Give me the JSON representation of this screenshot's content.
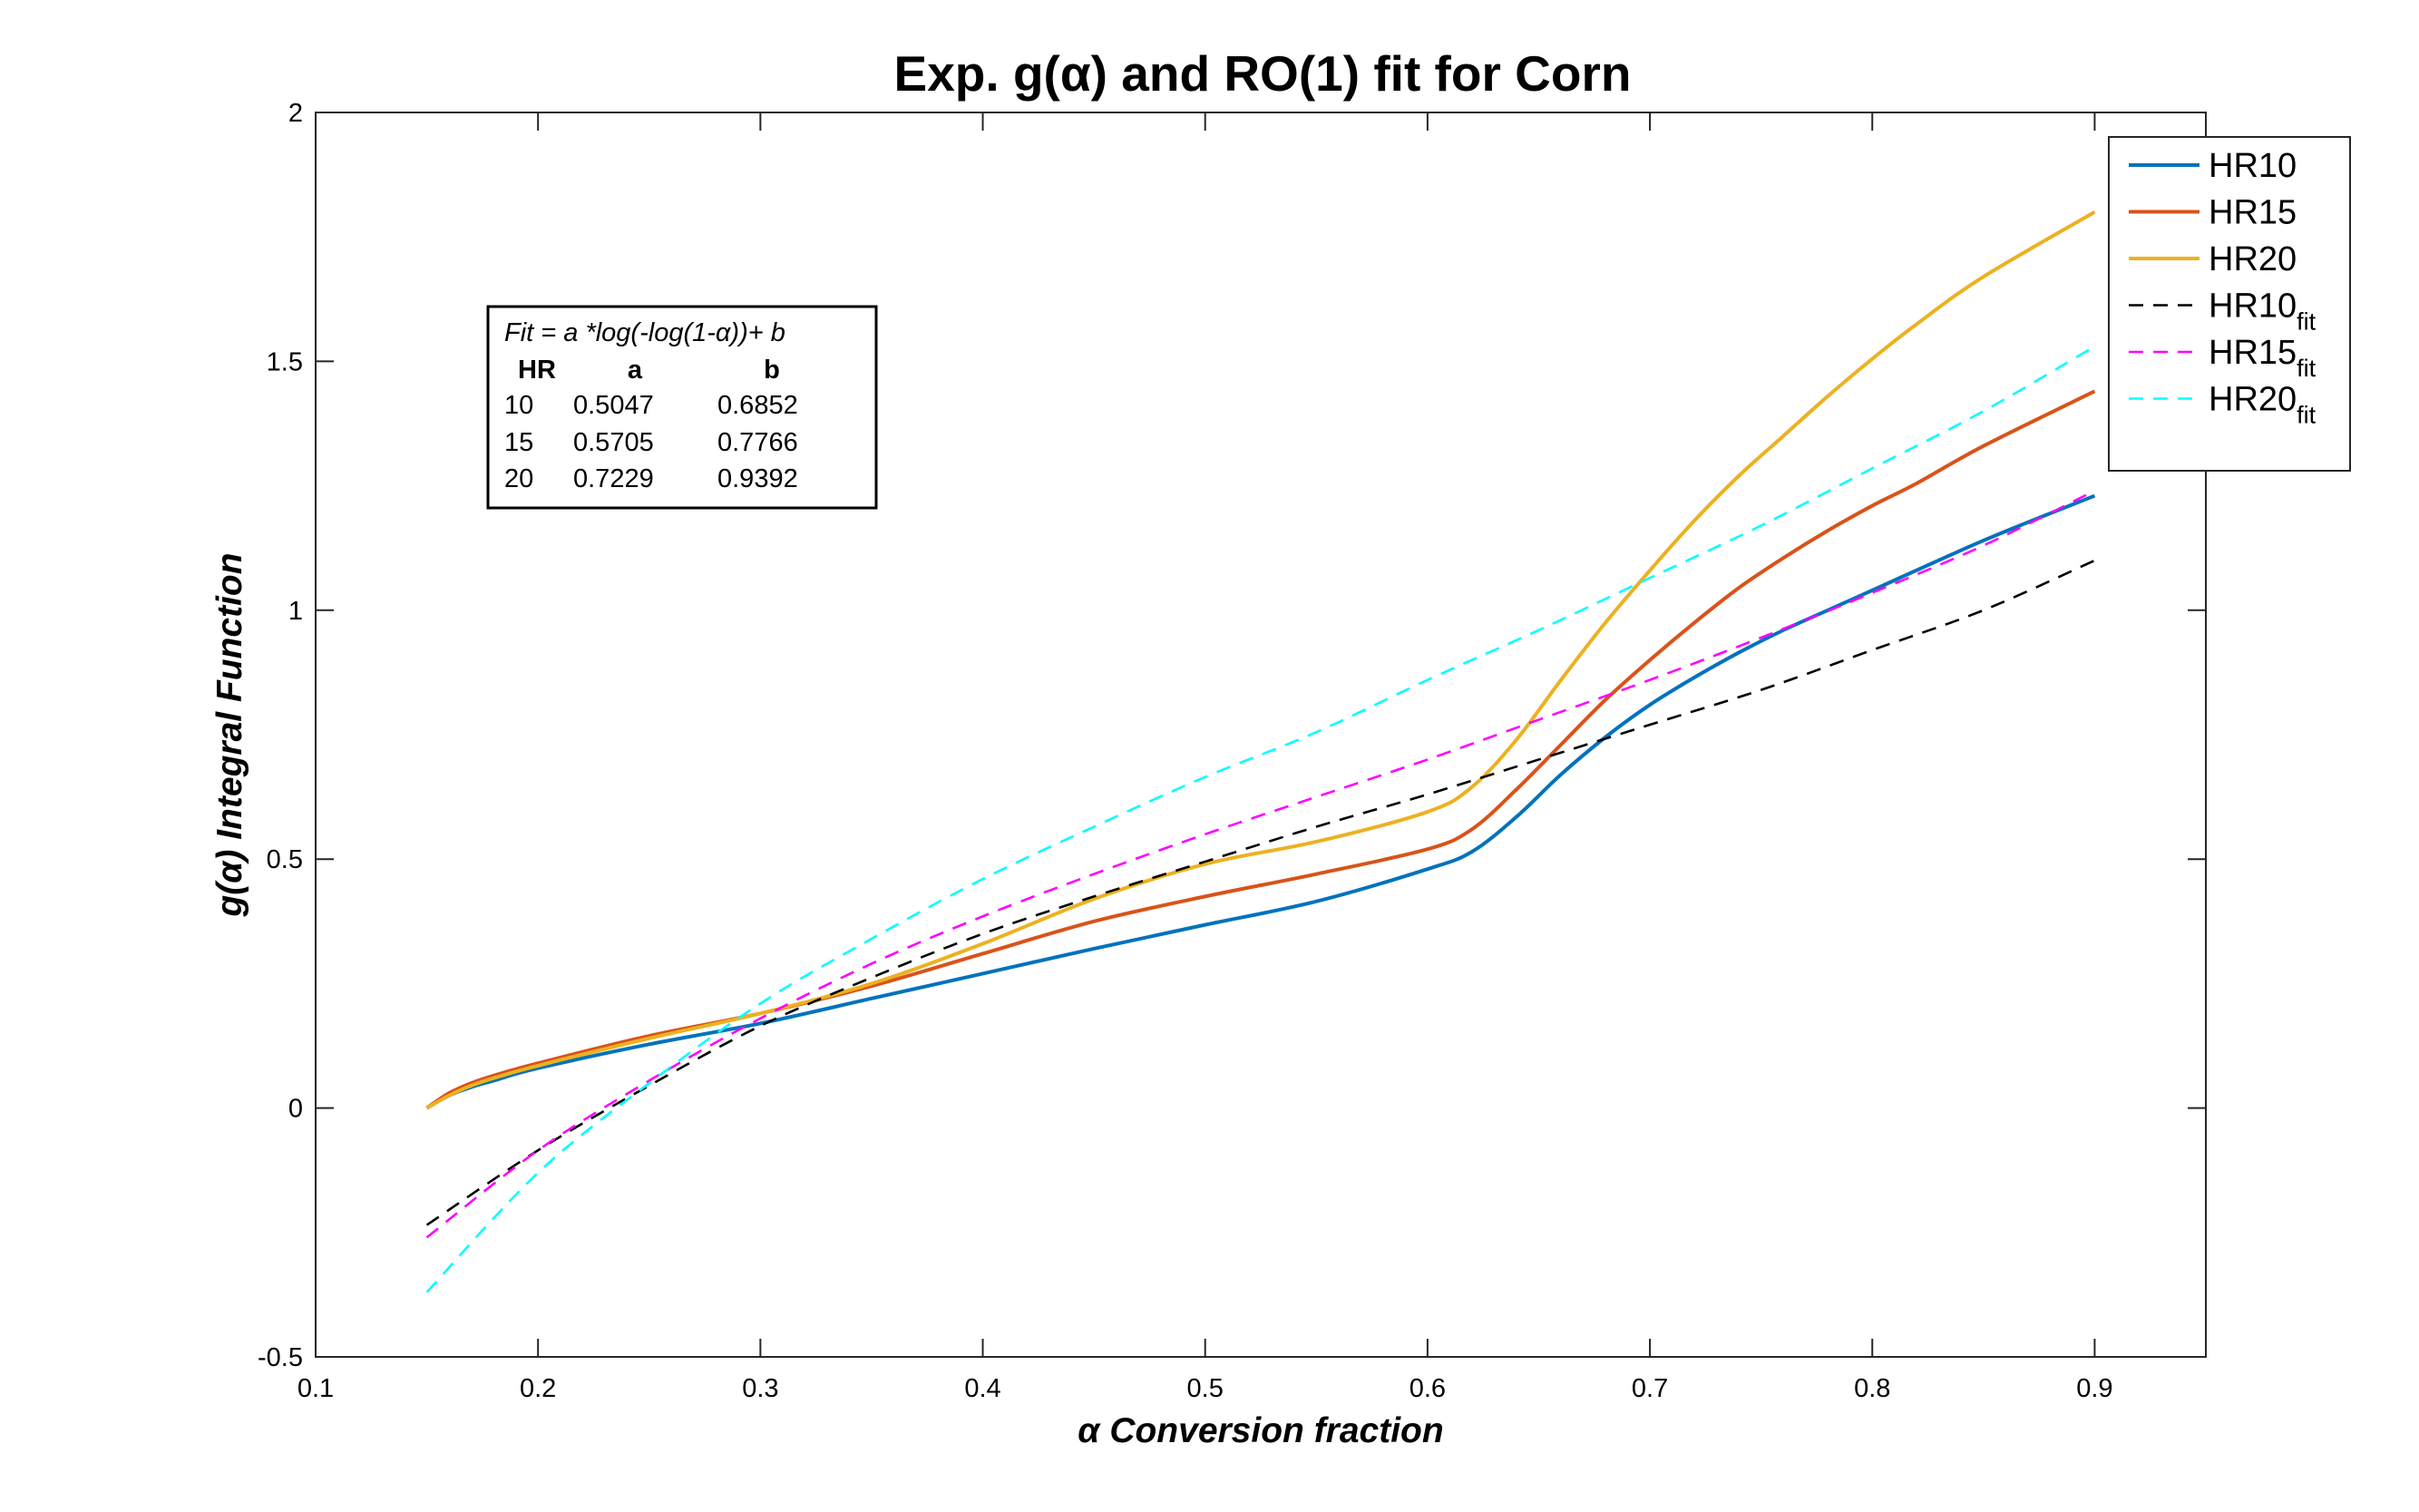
{
  "chart_data": {
    "type": "line",
    "title": "Exp. g(α) and RO(1) fit for Corn",
    "xlabel": "α  Conversion fraction",
    "ylabel": "g(α)  Integral Function",
    "xlim": [
      0.1,
      0.95
    ],
    "ylim": [
      -0.5,
      2
    ],
    "xticks": [
      0.1,
      0.2,
      0.3,
      0.4,
      0.5,
      0.6,
      0.7,
      0.8,
      0.9
    ],
    "xtick_labels": [
      "0.1",
      "0.2",
      "0.3",
      "0.4",
      "0.5",
      "0.6",
      "0.7",
      "0.8",
      "0.9"
    ],
    "yticks": [
      -0.5,
      0,
      0.5,
      1,
      1.5,
      2
    ],
    "ytick_labels": [
      "-0.5",
      "0",
      "0.5",
      "1",
      "1.5",
      "2"
    ],
    "grid": false,
    "legend_position": "top-right",
    "series": [
      {
        "name": "HR10",
        "name_sub": "",
        "color": "#0072BD",
        "style": "solid",
        "x": [
          0.15,
          0.16,
          0.17,
          0.18,
          0.2,
          0.25,
          0.3,
          0.35,
          0.4,
          0.45,
          0.5,
          0.55,
          0.6,
          0.62,
          0.64,
          0.66,
          0.68,
          0.7,
          0.72,
          0.74,
          0.76,
          0.78,
          0.8,
          0.85,
          0.9
        ],
        "y": [
          0.0,
          0.025,
          0.042,
          0.055,
          0.08,
          0.128,
          0.17,
          0.22,
          0.27,
          0.32,
          0.368,
          0.415,
          0.48,
          0.515,
          0.585,
          0.67,
          0.745,
          0.81,
          0.865,
          0.915,
          0.96,
          1.0,
          1.04,
          1.14,
          1.23
        ]
      },
      {
        "name": "HR15",
        "name_sub": "",
        "color": "#D95319",
        "style": "solid",
        "x": [
          0.15,
          0.16,
          0.17,
          0.18,
          0.2,
          0.25,
          0.3,
          0.35,
          0.4,
          0.45,
          0.5,
          0.55,
          0.6,
          0.62,
          0.64,
          0.66,
          0.68,
          0.7,
          0.72,
          0.74,
          0.76,
          0.78,
          0.8,
          0.82,
          0.85,
          0.9
        ],
        "y": [
          0.0,
          0.03,
          0.05,
          0.065,
          0.09,
          0.145,
          0.19,
          0.245,
          0.31,
          0.375,
          0.425,
          0.47,
          0.52,
          0.56,
          0.64,
          0.73,
          0.82,
          0.9,
          0.975,
          1.045,
          1.105,
          1.16,
          1.21,
          1.255,
          1.33,
          1.44
        ]
      },
      {
        "name": "HR20",
        "name_sub": "",
        "color": "#EDB120",
        "style": "solid",
        "x": [
          0.15,
          0.16,
          0.17,
          0.18,
          0.2,
          0.25,
          0.3,
          0.35,
          0.4,
          0.45,
          0.5,
          0.55,
          0.6,
          0.62,
          0.64,
          0.66,
          0.68,
          0.7,
          0.72,
          0.74,
          0.76,
          0.78,
          0.8,
          0.82,
          0.85,
          0.9
        ],
        "y": [
          0.0,
          0.025,
          0.045,
          0.06,
          0.085,
          0.14,
          0.19,
          0.25,
          0.33,
          0.42,
          0.49,
          0.535,
          0.595,
          0.645,
          0.74,
          0.86,
          0.975,
          1.08,
          1.18,
          1.27,
          1.35,
          1.43,
          1.505,
          1.575,
          1.67,
          1.8
        ]
      },
      {
        "name": "HR10",
        "name_sub": "fit",
        "color": "#000000",
        "style": "dashed",
        "x": [
          0.15,
          0.2,
          0.25,
          0.3,
          0.35,
          0.4,
          0.45,
          0.5,
          0.55,
          0.6,
          0.65,
          0.7,
          0.75,
          0.8,
          0.85,
          0.9
        ],
        "y": [
          -0.235,
          -0.085,
          0.045,
          0.165,
          0.262,
          0.35,
          0.425,
          0.495,
          0.565,
          0.63,
          0.7,
          0.77,
          0.84,
          0.92,
          1.0,
          1.1
        ]
      },
      {
        "name": "HR15",
        "name_sub": "fit",
        "color": "#FF00FF",
        "style": "dashed",
        "x": [
          0.15,
          0.2,
          0.25,
          0.3,
          0.35,
          0.4,
          0.45,
          0.5,
          0.55,
          0.6,
          0.65,
          0.7,
          0.75,
          0.8,
          0.85,
          0.9
        ],
        "y": [
          -0.26,
          -0.085,
          0.055,
          0.18,
          0.29,
          0.385,
          0.47,
          0.55,
          0.625,
          0.7,
          0.78,
          0.86,
          0.945,
          1.035,
          1.13,
          1.24
        ]
      },
      {
        "name": "HR20",
        "name_sub": "fit",
        "color": "#00FFFF",
        "style": "dashed",
        "x": [
          0.15,
          0.2,
          0.25,
          0.3,
          0.35,
          0.4,
          0.45,
          0.5,
          0.55,
          0.6,
          0.65,
          0.7,
          0.75,
          0.8,
          0.85,
          0.9
        ],
        "y": [
          -0.37,
          -0.13,
          0.05,
          0.21,
          0.34,
          0.46,
          0.565,
          0.665,
          0.755,
          0.86,
          0.96,
          1.065,
          1.17,
          1.285,
          1.4,
          1.53
        ]
      }
    ],
    "annotation": {
      "formula": "Fit = a *log(-log(1-α))+ b",
      "headers": [
        "HR",
        "a",
        "b"
      ],
      "rows": [
        [
          "10",
          "0.5047",
          "0.6852"
        ],
        [
          "15",
          "0.5705",
          "0.7766"
        ],
        [
          "20",
          "0.7229",
          "0.9392"
        ]
      ]
    }
  }
}
